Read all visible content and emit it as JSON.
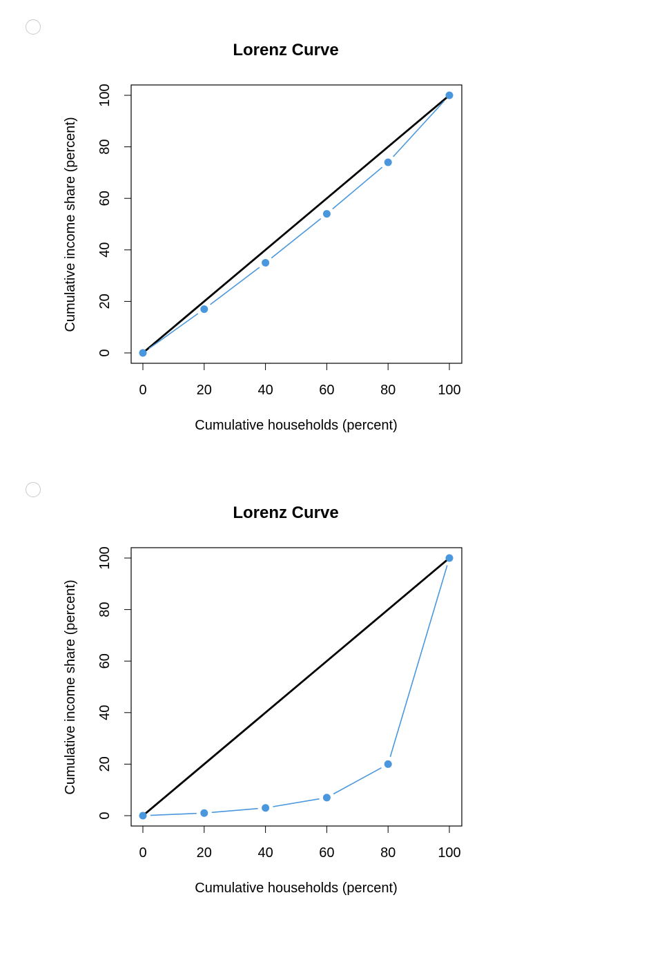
{
  "options": [
    {
      "chart_data": {
        "type": "line",
        "title": "Lorenz Curve",
        "xlabel": "Cumulative households (percent)",
        "ylabel": "Cumulative income share (percent)",
        "xlim": [
          0,
          100
        ],
        "ylim": [
          0,
          100
        ],
        "xticks": [
          "0",
          "20",
          "40",
          "60",
          "80",
          "100"
        ],
        "yticks": [
          "0",
          "20",
          "40",
          "60",
          "80",
          "100"
        ],
        "grid": false,
        "equality_line": {
          "x": [
            0,
            100
          ],
          "y": [
            0,
            100
          ],
          "color": "#000000"
        },
        "series": [
          {
            "x": [
              0,
              20,
              40,
              60,
              80,
              100
            ],
            "y": [
              0,
              17,
              35,
              54,
              74,
              100
            ],
            "color": "#4a97dd"
          }
        ]
      }
    },
    {
      "chart_data": {
        "type": "line",
        "title": "Lorenz Curve",
        "xlabel": "Cumulative households (percent)",
        "ylabel": "Cumulative income share (percent)",
        "xlim": [
          0,
          100
        ],
        "ylim": [
          0,
          100
        ],
        "xticks": [
          "0",
          "20",
          "40",
          "60",
          "80",
          "100"
        ],
        "yticks": [
          "0",
          "20",
          "40",
          "60",
          "80",
          "100"
        ],
        "grid": false,
        "equality_line": {
          "x": [
            0,
            100
          ],
          "y": [
            0,
            100
          ],
          "color": "#000000"
        },
        "series": [
          {
            "x": [
              0,
              20,
              40,
              60,
              80,
              100
            ],
            "y": [
              0,
              1,
              3,
              7,
              20,
              100
            ],
            "color": "#4a97dd"
          }
        ]
      }
    }
  ]
}
